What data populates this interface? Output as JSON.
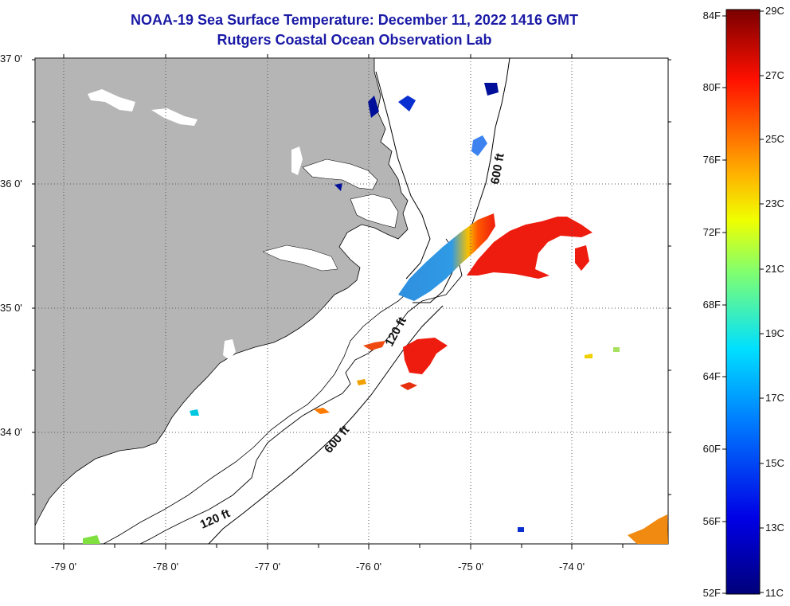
{
  "title": {
    "line1": "NOAA-19 Sea Surface Temperature:  December 11, 2022 1416 GMT",
    "line2": "Rutgers Coastal Ocean Observation Lab"
  },
  "map": {
    "lat_labels": [
      "37 0'",
      "36 0'",
      "35 0'",
      "34 0'"
    ],
    "lon_labels": [
      "-79 0'",
      "-78 0'",
      "-77 0'",
      "-76 0'",
      "-75 0'",
      "-74 0'"
    ],
    "contour_labels": {
      "isobath_600_north": "600 ft",
      "isobath_120_mid": "120 ft",
      "isobath_600_south": "600 ft",
      "isobath_120_south": "120 ft"
    },
    "colors": {
      "land": "#b5b5b5",
      "water": "#ffffff",
      "grid": "#555555",
      "cold_patch": "#2f8fe0",
      "warm_patch": "#ee1c0e"
    }
  },
  "colorbar": {
    "f_labels": [
      "84F",
      "80F",
      "76F",
      "72F",
      "68F",
      "64F",
      "60F",
      "56F",
      "52F"
    ],
    "c_labels": [
      "29C",
      "27C",
      "25C",
      "23C",
      "21C",
      "19C",
      "17C",
      "15C",
      "13C",
      "11C"
    ],
    "range_f": [
      52,
      84
    ],
    "range_c": [
      11,
      29
    ]
  }
}
